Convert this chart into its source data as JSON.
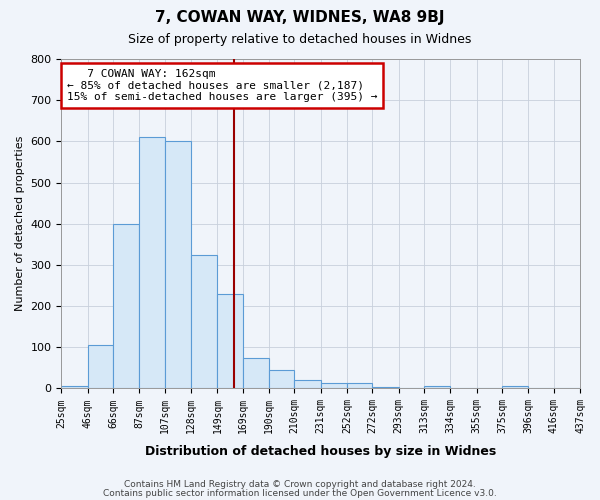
{
  "title1": "7, COWAN WAY, WIDNES, WA8 9BJ",
  "title2": "Size of property relative to detached houses in Widnes",
  "xlabel": "Distribution of detached houses by size in Widnes",
  "ylabel": "Number of detached properties",
  "bar_edges": [
    25,
    46,
    66,
    87,
    107,
    128,
    149,
    169,
    190,
    210,
    231,
    252,
    272,
    293,
    313,
    334,
    355,
    375,
    396,
    416,
    437
  ],
  "bar_heights": [
    5,
    105,
    400,
    610,
    600,
    325,
    230,
    75,
    45,
    20,
    12,
    12,
    3,
    0,
    5,
    0,
    0,
    5,
    0,
    0
  ],
  "bar_color": "#d6e8f7",
  "bar_edge_color": "#5b9bd5",
  "red_line_x": 162,
  "red_line_color": "#990000",
  "annotation_line1": "   7 COWAN WAY: 162sqm",
  "annotation_line2": "← 85% of detached houses are smaller (2,187)",
  "annotation_line3": "15% of semi-detached houses are larger (395) →",
  "annotation_box_color": "#ffffff",
  "annotation_box_edge_color": "#cc0000",
  "ylim": [
    0,
    800
  ],
  "yticks": [
    0,
    100,
    200,
    300,
    400,
    500,
    600,
    700,
    800
  ],
  "footer1": "Contains HM Land Registry data © Crown copyright and database right 2024.",
  "footer2": "Contains public sector information licensed under the Open Government Licence v3.0.",
  "bg_color": "#f0f4fa",
  "grid_color": "#c8d0dc"
}
